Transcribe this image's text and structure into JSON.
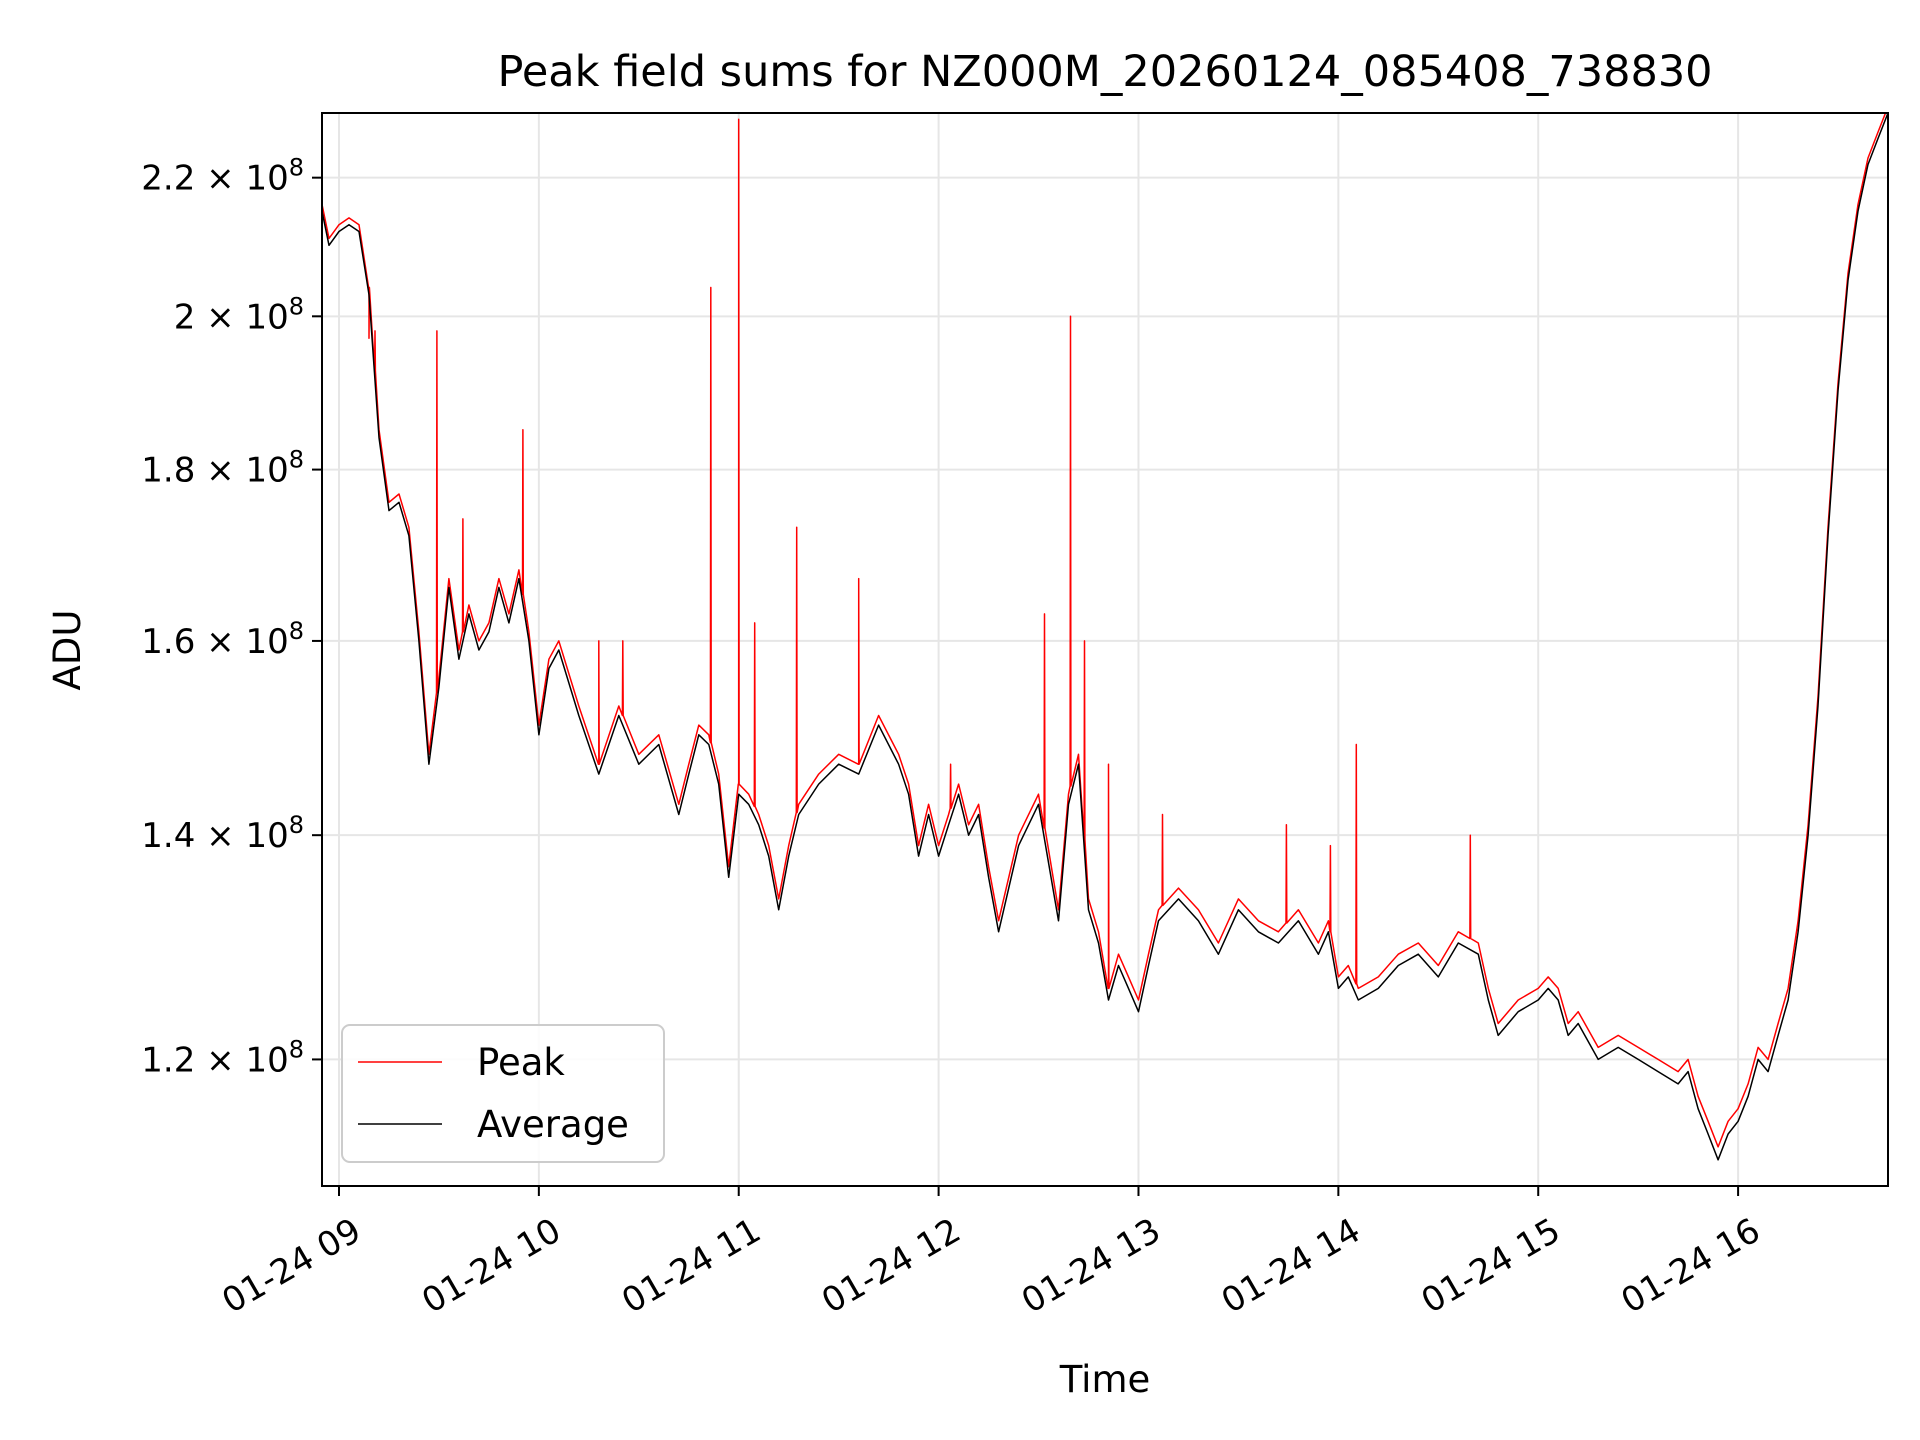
{
  "chart_data": {
    "type": "line",
    "title": "Peak field sums for NZ000M_20260124_085408_738830",
    "xlabel": "Time",
    "ylabel": "ADU",
    "yscale": "log",
    "xlim_hours": [
      8.915,
      16.75
    ],
    "ylim": [
      110000000,
      230000000
    ],
    "x_ticks": [
      {
        "hour": 9,
        "label": "01-24 09"
      },
      {
        "hour": 10,
        "label": "01-24 10"
      },
      {
        "hour": 11,
        "label": "01-24 11"
      },
      {
        "hour": 12,
        "label": "01-24 12"
      },
      {
        "hour": 13,
        "label": "01-24 13"
      },
      {
        "hour": 14,
        "label": "01-24 14"
      },
      {
        "hour": 15,
        "label": "01-24 15"
      },
      {
        "hour": 16,
        "label": "01-24 16"
      }
    ],
    "y_ticks": [
      {
        "value": 120000000,
        "mantissa": "1.2",
        "exponent": "8"
      },
      {
        "value": 140000000,
        "mantissa": "1.4",
        "exponent": "8"
      },
      {
        "value": 160000000,
        "mantissa": "1.6",
        "exponent": "8"
      },
      {
        "value": 180000000,
        "mantissa": "1.8",
        "exponent": "8"
      },
      {
        "value": 200000000,
        "mantissa": "2",
        "exponent": "8"
      },
      {
        "value": 220000000,
        "mantissa": "2.2",
        "exponent": "8"
      }
    ],
    "legend": {
      "position": "lower-left",
      "entries": [
        {
          "label": "Peak",
          "color": "#ff0000"
        },
        {
          "label": "Average",
          "color": "#000000"
        }
      ]
    },
    "series": [
      {
        "name": "Average",
        "color": "#000000",
        "x_hours": [
          8.915,
          8.95,
          9.0,
          9.05,
          9.1,
          9.15,
          9.2,
          9.25,
          9.3,
          9.35,
          9.4,
          9.45,
          9.5,
          9.55,
          9.6,
          9.65,
          9.7,
          9.75,
          9.8,
          9.85,
          9.9,
          9.95,
          10.0,
          10.05,
          10.1,
          10.2,
          10.3,
          10.4,
          10.5,
          10.6,
          10.7,
          10.75,
          10.8,
          10.85,
          10.9,
          10.95,
          11.0,
          11.05,
          11.1,
          11.15,
          11.2,
          11.25,
          11.3,
          11.4,
          11.5,
          11.6,
          11.7,
          11.8,
          11.85,
          11.9,
          11.95,
          12.0,
          12.05,
          12.1,
          12.15,
          12.2,
          12.25,
          12.3,
          12.4,
          12.5,
          12.6,
          12.65,
          12.7,
          12.75,
          12.8,
          12.85,
          12.9,
          12.95,
          13.0,
          13.05,
          13.1,
          13.2,
          13.3,
          13.4,
          13.5,
          13.6,
          13.7,
          13.8,
          13.9,
          13.95,
          14.0,
          14.05,
          14.1,
          14.2,
          14.3,
          14.4,
          14.5,
          14.6,
          14.7,
          14.75,
          14.8,
          14.9,
          15.0,
          15.05,
          15.1,
          15.15,
          15.2,
          15.3,
          15.4,
          15.5,
          15.6,
          15.7,
          15.75,
          15.8,
          15.85,
          15.9,
          15.95,
          16.0,
          16.05,
          16.1,
          16.15,
          16.2,
          16.25,
          16.3,
          16.35,
          16.4,
          16.45,
          16.5,
          16.55,
          16.6,
          16.65,
          16.7,
          16.75
        ],
        "values": [
          215000000.0,
          210000000.0,
          212000000.0,
          213000000.0,
          212000000.0,
          203000000.0,
          184000000.0,
          175000000.0,
          176000000.0,
          172000000.0,
          160000000.0,
          147000000.0,
          155000000.0,
          166000000.0,
          158000000.0,
          163000000.0,
          159000000.0,
          161000000.0,
          166000000.0,
          162000000.0,
          167000000.0,
          160000000.0,
          150000000.0,
          157000000.0,
          159000000.0,
          152000000.0,
          146000000.0,
          152000000.0,
          147000000.0,
          149000000.0,
          142000000.0,
          146000000.0,
          150000000.0,
          149000000.0,
          145000000.0,
          136000000.0,
          144000000.0,
          143000000.0,
          141000000.0,
          138000000.0,
          133000000.0,
          138000000.0,
          142000000.0,
          145000000.0,
          147000000.0,
          146000000.0,
          151000000.0,
          147000000.0,
          144000000.0,
          138000000.0,
          142000000.0,
          138000000.0,
          141000000.0,
          144000000.0,
          140000000.0,
          142000000.0,
          136000000.0,
          131000000.0,
          139000000.0,
          143000000.0,
          132000000.0,
          143000000.0,
          147000000.0,
          133000000.0,
          130000000.0,
          125000000.0,
          128000000.0,
          126000000.0,
          124000000.0,
          128000000.0,
          132000000.0,
          134000000.0,
          132000000.0,
          129000000.0,
          133000000.0,
          131000000.0,
          130000000.0,
          132000000.0,
          129000000.0,
          131000000.0,
          126000000.0,
          127000000.0,
          125000000.0,
          126000000.0,
          128000000.0,
          129000000.0,
          127000000.0,
          130000000.0,
          129000000.0,
          125000000.0,
          122000000.0,
          124000000.0,
          125000000.0,
          126000000.0,
          125000000.0,
          122000000.0,
          123000000.0,
          120000000.0,
          121000000.0,
          120000000.0,
          119000000.0,
          118000000.0,
          119000000.0,
          116000000.0,
          114000000.0,
          112000000.0,
          114000000.0,
          115000000.0,
          117000000.0,
          120000000.0,
          119000000.0,
          122000000.0,
          125000000.0,
          131000000.0,
          140000000.0,
          153000000.0,
          172000000.0,
          190000000.0,
          205000000.0,
          215000000.0,
          222000000.0,
          226000000.0,
          230000000.0
        ]
      },
      {
        "name": "Peak",
        "color": "#ff0000",
        "x_hours": [
          8.915,
          8.95,
          9.0,
          9.05,
          9.1,
          9.15,
          9.2,
          9.25,
          9.3,
          9.35,
          9.4,
          9.45,
          9.5,
          9.55,
          9.6,
          9.65,
          9.7,
          9.75,
          9.8,
          9.85,
          9.9,
          9.95,
          10.0,
          10.05,
          10.1,
          10.2,
          10.3,
          10.4,
          10.5,
          10.6,
          10.7,
          10.75,
          10.8,
          10.85,
          10.9,
          10.95,
          11.0,
          11.05,
          11.1,
          11.15,
          11.2,
          11.25,
          11.3,
          11.4,
          11.5,
          11.6,
          11.7,
          11.8,
          11.85,
          11.9,
          11.95,
          12.0,
          12.05,
          12.1,
          12.15,
          12.2,
          12.25,
          12.3,
          12.4,
          12.5,
          12.6,
          12.65,
          12.7,
          12.75,
          12.8,
          12.85,
          12.9,
          12.95,
          13.0,
          13.05,
          13.1,
          13.2,
          13.3,
          13.4,
          13.5,
          13.6,
          13.7,
          13.8,
          13.9,
          13.95,
          14.0,
          14.05,
          14.1,
          14.2,
          14.3,
          14.4,
          14.5,
          14.6,
          14.7,
          14.75,
          14.8,
          14.9,
          15.0,
          15.05,
          15.1,
          15.15,
          15.2,
          15.3,
          15.4,
          15.5,
          15.6,
          15.7,
          15.75,
          15.8,
          15.85,
          15.9,
          15.95,
          16.0,
          16.05,
          16.1,
          16.15,
          16.2,
          16.25,
          16.3,
          16.35,
          16.4,
          16.45,
          16.5,
          16.55,
          16.6,
          16.65,
          16.7,
          16.75
        ],
        "values": [
          216000000.0,
          211000000.0,
          213000000.0,
          214000000.0,
          213000000.0,
          204000000.0,
          185000000.0,
          176000000.0,
          177000000.0,
          173000000.0,
          161000000.0,
          148000000.0,
          156000000.0,
          167000000.0,
          159000000.0,
          164000000.0,
          160000000.0,
          162000000.0,
          167000000.0,
          163000000.0,
          168000000.0,
          161000000.0,
          151000000.0,
          158000000.0,
          160000000.0,
          153000000.0,
          147000000.0,
          153000000.0,
          148000000.0,
          150000000.0,
          143000000.0,
          147000000.0,
          151000000.0,
          150000000.0,
          146000000.0,
          137000000.0,
          145000000.0,
          144000000.0,
          142000000.0,
          139000000.0,
          134000000.0,
          139000000.0,
          143000000.0,
          146000000.0,
          148000000.0,
          147000000.0,
          152000000.0,
          148000000.0,
          145000000.0,
          139000000.0,
          143000000.0,
          139000000.0,
          142000000.0,
          145000000.0,
          141000000.0,
          143000000.0,
          137000000.0,
          132000000.0,
          140000000.0,
          144000000.0,
          133000000.0,
          144000000.0,
          148000000.0,
          134000000.0,
          131000000.0,
          126000000.0,
          129000000.0,
          127000000.0,
          125000000.0,
          129000000.0,
          133000000.0,
          135000000.0,
          133000000.0,
          130000000.0,
          134000000.0,
          132000000.0,
          131000000.0,
          133000000.0,
          130000000.0,
          132000000.0,
          127000000.0,
          128000000.0,
          126000000.0,
          127000000.0,
          129000000.0,
          130000000.0,
          128000000.0,
          131000000.0,
          130000000.0,
          126000000.0,
          123000000.0,
          125000000.0,
          126000000.0,
          127000000.0,
          126000000.0,
          123000000.0,
          124000000.0,
          121000000.0,
          122000000.0,
          121000000.0,
          120000000.0,
          119000000.0,
          120000000.0,
          117000000.0,
          115000000.0,
          113000000.0,
          115000000.0,
          116000000.0,
          118000000.0,
          121000000.0,
          120000000.0,
          123000000.0,
          126000000.0,
          132000000.0,
          141000000.0,
          154000000.0,
          173000000.0,
          191000000.0,
          206000000.0,
          216000000.0,
          223000000.0,
          227000000.0,
          231000000.0
        ],
        "spikes": [
          {
            "hour": 9.15,
            "value": 197000000.0
          },
          {
            "hour": 9.18,
            "value": 198000000.0
          },
          {
            "hour": 9.49,
            "value": 198000000.0
          },
          {
            "hour": 9.62,
            "value": 174000000.0
          },
          {
            "hour": 9.92,
            "value": 185000000.0
          },
          {
            "hour": 10.3,
            "value": 160000000.0
          },
          {
            "hour": 10.42,
            "value": 160000000.0
          },
          {
            "hour": 10.86,
            "value": 204000000.0
          },
          {
            "hour": 11.0,
            "value": 229000000.0
          },
          {
            "hour": 11.08,
            "value": 162000000.0
          },
          {
            "hour": 11.29,
            "value": 173000000.0
          },
          {
            "hour": 11.6,
            "value": 167000000.0
          },
          {
            "hour": 12.06,
            "value": 147000000.0
          },
          {
            "hour": 12.53,
            "value": 163000000.0
          },
          {
            "hour": 12.66,
            "value": 200000000.0
          },
          {
            "hour": 12.73,
            "value": 160000000.0
          },
          {
            "hour": 12.85,
            "value": 147000000.0
          },
          {
            "hour": 13.12,
            "value": 142000000.0
          },
          {
            "hour": 13.74,
            "value": 141000000.0
          },
          {
            "hour": 13.96,
            "value": 139000000.0
          },
          {
            "hour": 14.09,
            "value": 149000000.0
          },
          {
            "hour": 14.66,
            "value": 140000000.0
          }
        ]
      }
    ]
  }
}
